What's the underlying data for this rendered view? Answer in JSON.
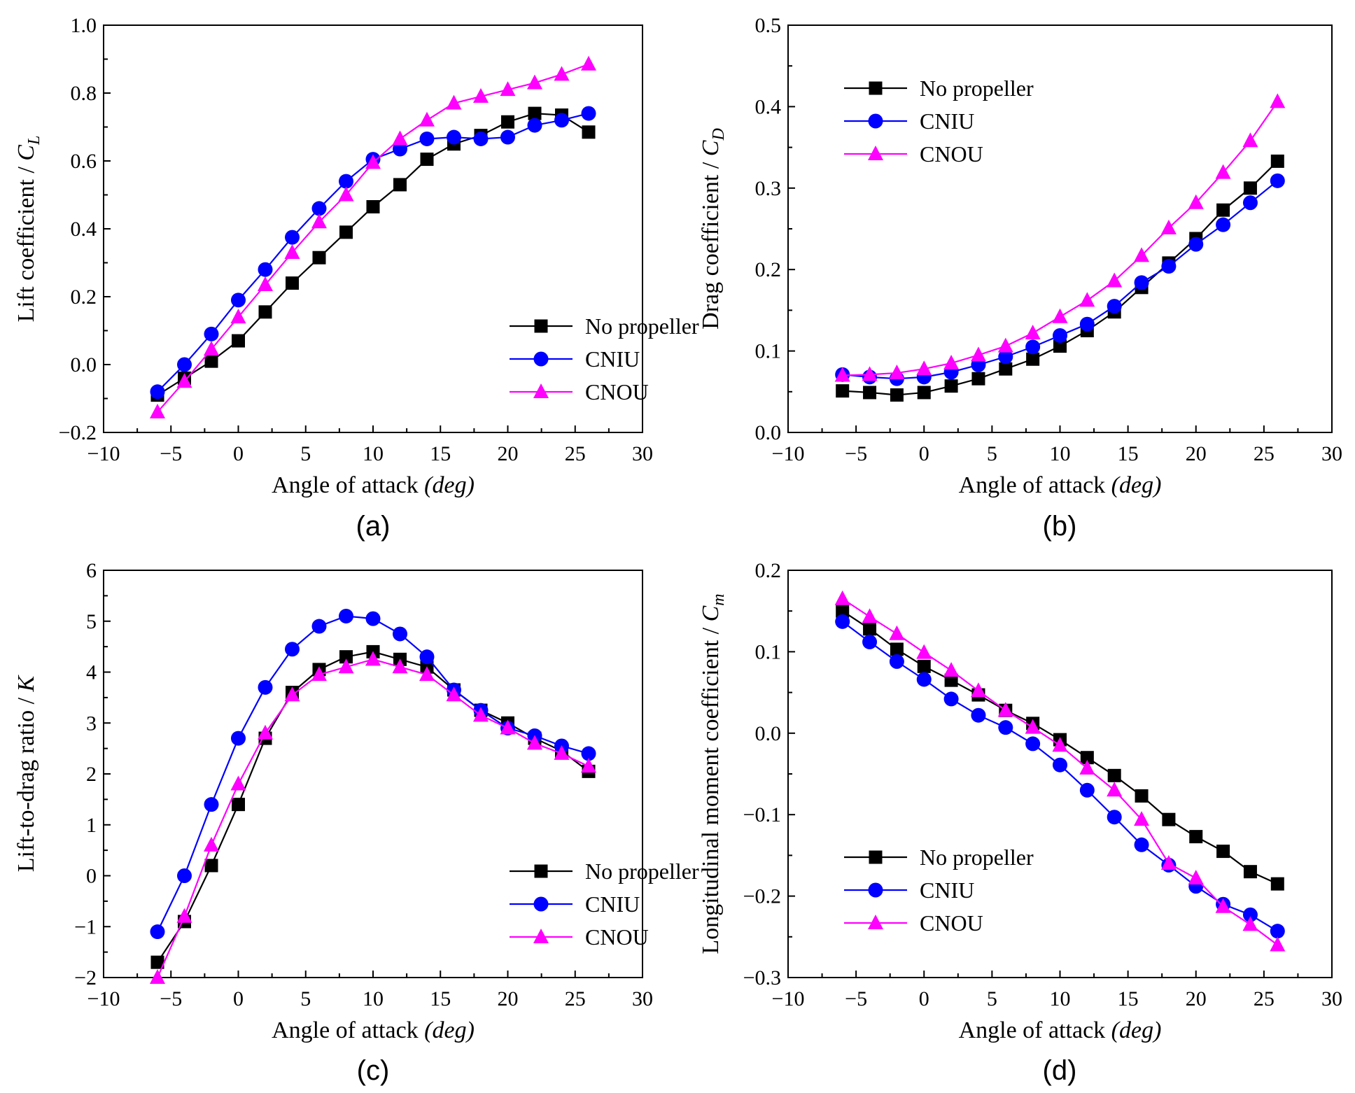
{
  "colors": {
    "no_propeller": "#000000",
    "cniu": "#0000ff",
    "cnou": "#ff00ff"
  },
  "chart_data": [
    {
      "type": "line",
      "panel_label": "(a)",
      "xlabel": "Angle of attack",
      "xlabel_unit": "(deg)",
      "ylabel": "Lift coefficient / ",
      "ylabel_sym": "C",
      "ylabel_sub": "L",
      "xlim": [
        -10,
        30
      ],
      "ylim": [
        -0.2,
        1.0
      ],
      "xticks": [
        -10,
        -5,
        0,
        5,
        10,
        15,
        20,
        25,
        30
      ],
      "yticks": [
        -0.2,
        0.0,
        0.2,
        0.4,
        0.6,
        0.8,
        1.0
      ],
      "ydecimals": 1,
      "legend_position": "bottom-right",
      "x": [
        -6,
        -4,
        -2,
        0,
        2,
        4,
        6,
        8,
        10,
        12,
        14,
        16,
        18,
        20,
        22,
        24,
        26
      ],
      "series": [
        {
          "name": "No propeller",
          "marker": "square",
          "color_key": "no_propeller",
          "values": [
            -0.09,
            -0.04,
            0.01,
            0.07,
            0.155,
            0.24,
            0.315,
            0.39,
            0.465,
            0.53,
            0.605,
            0.65,
            0.675,
            0.715,
            0.74,
            0.735,
            0.685
          ]
        },
        {
          "name": "CNIU",
          "marker": "circle",
          "color_key": "cniu",
          "values": [
            -0.08,
            0.0,
            0.09,
            0.19,
            0.28,
            0.375,
            0.46,
            0.54,
            0.605,
            0.635,
            0.665,
            0.67,
            0.665,
            0.67,
            0.705,
            0.72,
            0.74
          ]
        },
        {
          "name": "CNOU",
          "marker": "triangle",
          "color_key": "cnou",
          "values": [
            -0.14,
            -0.05,
            0.045,
            0.14,
            0.235,
            0.33,
            0.42,
            0.5,
            0.595,
            0.665,
            0.72,
            0.77,
            0.79,
            0.81,
            0.83,
            0.855,
            0.885
          ]
        }
      ]
    },
    {
      "type": "line",
      "panel_label": "(b)",
      "xlabel": "Angle of attack",
      "xlabel_unit": "(deg)",
      "ylabel": "Drag coefficient / ",
      "ylabel_sym": "C",
      "ylabel_sub": "D",
      "xlim": [
        -10,
        30
      ],
      "ylim": [
        0.0,
        0.5
      ],
      "xticks": [
        -10,
        -5,
        0,
        5,
        10,
        15,
        20,
        25,
        30
      ],
      "yticks": [
        0.0,
        0.1,
        0.2,
        0.3,
        0.4,
        0.5
      ],
      "ydecimals": 1,
      "legend_position": "top-left",
      "x": [
        -6,
        -4,
        -2,
        0,
        2,
        4,
        6,
        8,
        10,
        12,
        14,
        16,
        18,
        20,
        22,
        24,
        26
      ],
      "series": [
        {
          "name": "No propeller",
          "marker": "square",
          "color_key": "no_propeller",
          "values": [
            0.051,
            0.049,
            0.046,
            0.049,
            0.057,
            0.066,
            0.078,
            0.09,
            0.106,
            0.125,
            0.148,
            0.178,
            0.208,
            0.238,
            0.273,
            0.3,
            0.333
          ]
        },
        {
          "name": "CNIU",
          "marker": "circle",
          "color_key": "cniu",
          "values": [
            0.071,
            0.068,
            0.066,
            0.068,
            0.074,
            0.083,
            0.093,
            0.105,
            0.119,
            0.133,
            0.155,
            0.184,
            0.204,
            0.231,
            0.255,
            0.282,
            0.309
          ]
        },
        {
          "name": "CNOU",
          "marker": "triangle",
          "color_key": "cnou",
          "values": [
            0.07,
            0.071,
            0.073,
            0.078,
            0.085,
            0.095,
            0.106,
            0.122,
            0.142,
            0.162,
            0.186,
            0.217,
            0.251,
            0.282,
            0.319,
            0.358,
            0.406
          ]
        }
      ]
    },
    {
      "type": "line",
      "panel_label": "(c)",
      "xlabel": "Angle of attack",
      "xlabel_unit": "(deg)",
      "ylabel": "Lift-to-drag ratio / ",
      "ylabel_sym": "K",
      "ylabel_sub": "",
      "xlim": [
        -10,
        30
      ],
      "ylim": [
        -2,
        6
      ],
      "xticks": [
        -10,
        -5,
        0,
        5,
        10,
        15,
        20,
        25,
        30
      ],
      "yticks": [
        -2,
        -1,
        0,
        1,
        2,
        3,
        4,
        5,
        6
      ],
      "ydecimals": 0,
      "legend_position": "bottom-right",
      "x": [
        -6,
        -4,
        -2,
        0,
        2,
        4,
        6,
        8,
        10,
        12,
        14,
        16,
        18,
        20,
        22,
        24,
        26
      ],
      "series": [
        {
          "name": "No propeller",
          "marker": "square",
          "color_key": "no_propeller",
          "values": [
            -1.7,
            -0.9,
            0.2,
            1.4,
            2.7,
            3.6,
            4.05,
            4.3,
            4.4,
            4.25,
            4.1,
            3.65,
            3.25,
            3.0,
            2.7,
            2.45,
            2.05
          ]
        },
        {
          "name": "CNIU",
          "marker": "circle",
          "color_key": "cniu",
          "values": [
            -1.1,
            0.0,
            1.4,
            2.7,
            3.7,
            4.45,
            4.9,
            5.1,
            5.05,
            4.75,
            4.3,
            3.65,
            3.25,
            2.9,
            2.75,
            2.55,
            2.4
          ]
        },
        {
          "name": "CNOU",
          "marker": "triangle",
          "color_key": "cnou",
          "values": [
            -2.0,
            -0.8,
            0.6,
            1.8,
            2.8,
            3.55,
            3.95,
            4.1,
            4.25,
            4.1,
            3.95,
            3.55,
            3.15,
            2.9,
            2.6,
            2.4,
            2.15
          ]
        }
      ]
    },
    {
      "type": "line",
      "panel_label": "(d)",
      "xlabel": "Angle of attack",
      "xlabel_unit": "(deg)",
      "ylabel": "Longitudinal moment coefficient / ",
      "ylabel_sym": "C",
      "ylabel_sub": "m",
      "xlim": [
        -10,
        30
      ],
      "ylim": [
        -0.3,
        0.2
      ],
      "xticks": [
        -10,
        -5,
        0,
        5,
        10,
        15,
        20,
        25,
        30
      ],
      "yticks": [
        -0.3,
        -0.2,
        -0.1,
        0.0,
        0.1,
        0.2
      ],
      "ydecimals": 1,
      "legend_position": "bottom-left",
      "x": [
        -6,
        -4,
        -2,
        0,
        2,
        4,
        6,
        8,
        10,
        12,
        14,
        16,
        18,
        20,
        22,
        24,
        26
      ],
      "series": [
        {
          "name": "No propeller",
          "marker": "square",
          "color_key": "no_propeller",
          "values": [
            0.15,
            0.128,
            0.103,
            0.082,
            0.065,
            0.047,
            0.028,
            0.012,
            -0.008,
            -0.03,
            -0.052,
            -0.077,
            -0.106,
            -0.127,
            -0.145,
            -0.17,
            -0.185
          ]
        },
        {
          "name": "CNIU",
          "marker": "circle",
          "color_key": "cniu",
          "values": [
            0.137,
            0.112,
            0.088,
            0.066,
            0.042,
            0.022,
            0.007,
            -0.013,
            -0.039,
            -0.07,
            -0.103,
            -0.137,
            -0.162,
            -0.188,
            -0.21,
            -0.223,
            -0.243
          ]
        },
        {
          "name": "CNOU",
          "marker": "triangle",
          "color_key": "cnou",
          "values": [
            0.165,
            0.143,
            0.122,
            0.099,
            0.077,
            0.052,
            0.028,
            0.007,
            -0.015,
            -0.043,
            -0.07,
            -0.106,
            -0.16,
            -0.178,
            -0.213,
            -0.235,
            -0.26
          ]
        }
      ]
    }
  ]
}
